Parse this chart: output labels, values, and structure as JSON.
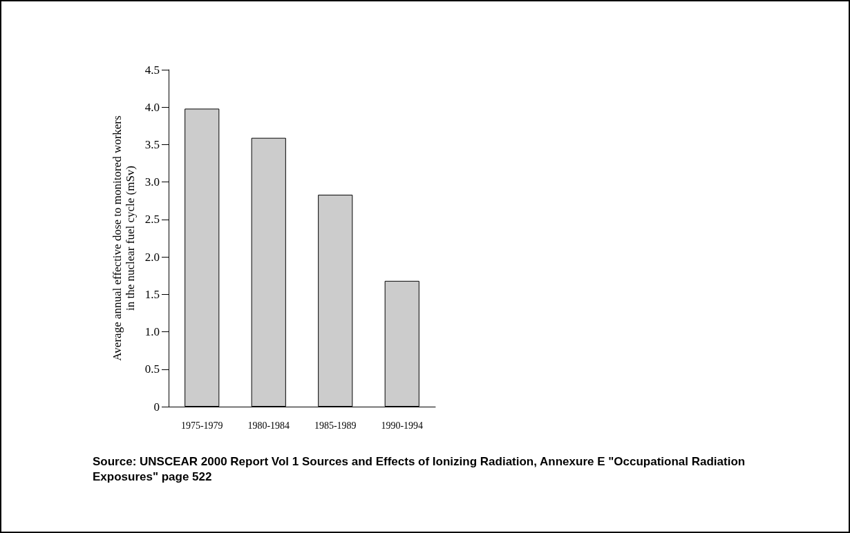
{
  "chart_data": {
    "type": "bar",
    "ylabel": "Average annual effective dose to monitored workers\nin the nuclear fuel cycle (mSv)",
    "categories": [
      "1975-1979",
      "1980-1984",
      "1985-1989",
      "1990-1994"
    ],
    "values": [
      3.98,
      3.59,
      2.83,
      1.68
    ],
    "color": "#cccccc",
    "ylim": [
      0,
      4.5
    ],
    "yticks": [
      0,
      {
        "value": 0.5,
        "label": "0.5"
      },
      {
        "value": 1,
        "label": "1.0"
      },
      {
        "value": 1.5,
        "label": "1.5"
      },
      {
        "value": 2,
        "label": "2.0"
      },
      {
        "value": 2.5,
        "label": "2.5"
      },
      {
        "value": 3,
        "label": "3.0"
      },
      {
        "value": 3.5,
        "label": "3.5"
      },
      {
        "value": 4,
        "label": "4.0"
      },
      {
        "value": 4.5,
        "label": "4.5"
      }
    ],
    "grid": false,
    "annotations": [
      "Source: UNSCEAR 2000 Report Vol 1 Sources and Effects of Ionizing Radiation, Annexure E \"Occupational Radiation Exposures\" page 522"
    ]
  }
}
